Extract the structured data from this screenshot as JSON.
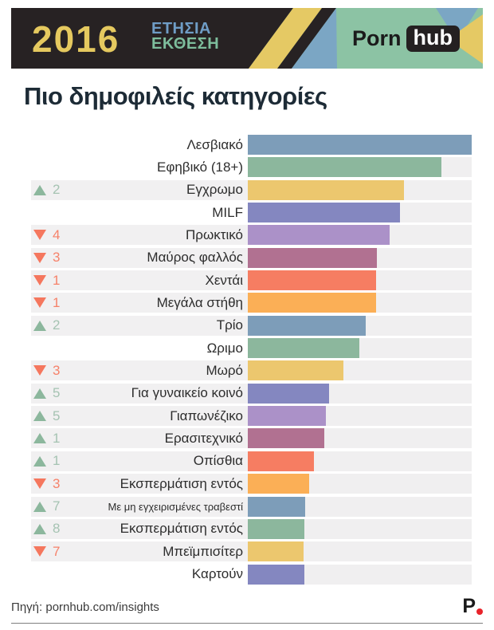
{
  "header": {
    "year": "2016",
    "report_line1": "ΕΤΗΣΙΑ",
    "report_line2": "ΕΚΘΕΣΗ",
    "brand_porn": "Porn",
    "brand_hub": "hub"
  },
  "page_title": "Πιο δημοφιλείς κατηγορίες",
  "chart_data": {
    "type": "bar",
    "orientation": "horizontal",
    "title": "Πιο δημοφιλείς κατηγορίες",
    "value_unit": "relative popularity, % of longest bar (estimated from pixels, no axis shown)",
    "xlim": [
      0,
      100
    ],
    "grid": false,
    "legend": false,
    "categories": [
      "Λεσβιακό",
      "Εφηβικό (18+)",
      "Εγχρωμο",
      "MILF",
      "Πρωκτικό",
      "Μαύρος φαλλός",
      "Χεντάι",
      "Μεγάλα στήθη",
      "Τρίο",
      "Ωριμο",
      "Μωρό",
      "Για γυναικείο κοινό",
      "Γιαπωνέζικο",
      "Ερασιτεχνικό",
      "Οπίσθια",
      "Εκσπερμάτιση εντός",
      "Με μη εγχειρισμένες τραβεστί",
      "Εκσπερμάτιση εντός",
      "Μπεϊμπισίτερ",
      "Καρτούν"
    ],
    "values": [
      100,
      86.5,
      69.8,
      68,
      63.3,
      57.7,
      57.3,
      57.3,
      52.7,
      49.8,
      42.7,
      36.3,
      34.9,
      34.2,
      29.5,
      27.4,
      25.6,
      25.3,
      24.9,
      25.3
    ],
    "rank_change": [
      null,
      null,
      {
        "dir": "up",
        "n": 2
      },
      null,
      {
        "dir": "down",
        "n": 4
      },
      {
        "dir": "down",
        "n": 3
      },
      {
        "dir": "down",
        "n": 1
      },
      {
        "dir": "down",
        "n": 1
      },
      {
        "dir": "up",
        "n": 2
      },
      null,
      {
        "dir": "down",
        "n": 3
      },
      {
        "dir": "up",
        "n": 5
      },
      {
        "dir": "up",
        "n": 5
      },
      {
        "dir": "up",
        "n": 1
      },
      {
        "dir": "up",
        "n": 1
      },
      {
        "dir": "down",
        "n": 3
      },
      {
        "dir": "up",
        "n": 7
      },
      {
        "dir": "up",
        "n": 8
      },
      {
        "dir": "down",
        "n": 7
      },
      null
    ],
    "bar_colors": [
      "#7d9db9",
      "#8cb79d",
      "#ecc76e",
      "#8487c0",
      "#ab91c8",
      "#b17191",
      "#f67d62",
      "#fbaf56",
      "#7d9db9",
      "#8cb79d",
      "#ecc76e",
      "#8487c0",
      "#ab91c8",
      "#b17191",
      "#f67d62",
      "#fbaf56",
      "#7d9db9",
      "#8cb79d",
      "#ecc76e",
      "#8487c0"
    ],
    "small_label_indexes": [
      16
    ],
    "up_indicator_color": "#8cb79d",
    "down_indicator_color": "#f5775e",
    "track_color": "#f0eff0"
  },
  "footer": {
    "source": "Πηγή: pornhub.com/insights",
    "logo_letter": "P"
  }
}
